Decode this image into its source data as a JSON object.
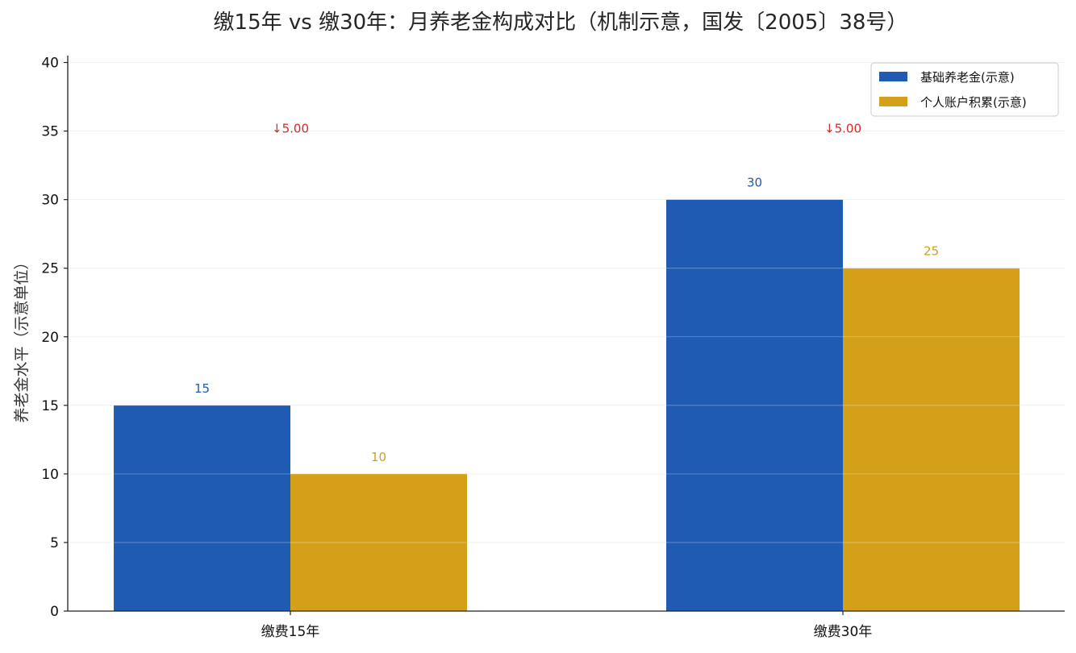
{
  "chart_data": {
    "type": "bar",
    "title": "缴15年 vs 缴30年：月养老金构成对比（机制示意，国发〔2005〕38号）",
    "xlabel": "",
    "ylabel": "养老金水平（示意单位）",
    "categories": [
      "缴费15年",
      "缴费30年"
    ],
    "series": [
      {
        "name": "基础养老金(示意)",
        "values": [
          15,
          30
        ],
        "color": "#1f5bb2"
      },
      {
        "name": "个人账户积累(示意)",
        "values": [
          10,
          25
        ],
        "color": "#d4a01a"
      }
    ],
    "ylim": [
      0,
      40
    ],
    "yticks": [
      0,
      5,
      10,
      15,
      20,
      25,
      30,
      35,
      40
    ],
    "annotations": [
      {
        "category": "缴费15年",
        "text": "↓5.00",
        "y": 35,
        "color": "#d62728"
      },
      {
        "category": "缴费30年",
        "text": "↓5.00",
        "y": 35,
        "color": "#d62728"
      }
    ],
    "grid": true,
    "legend": "top-right"
  }
}
